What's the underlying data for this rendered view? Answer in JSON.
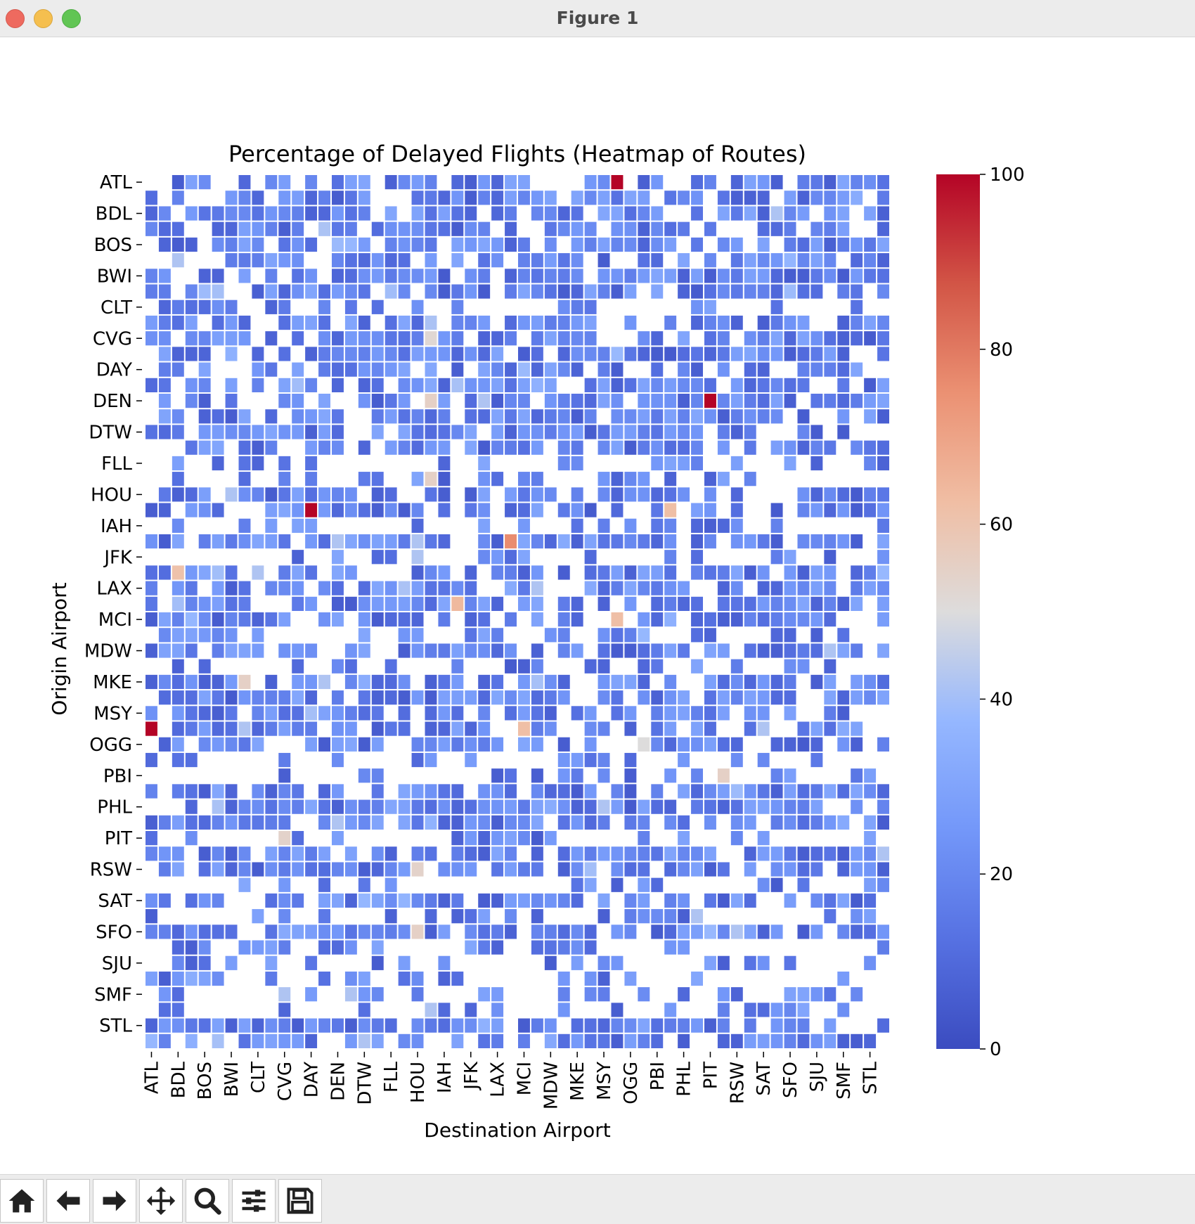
{
  "window": {
    "title": "Figure 1"
  },
  "toolbar": {
    "buttons": [
      {
        "name": "home-button",
        "icon": "home-icon"
      },
      {
        "name": "back-button",
        "icon": "arrow-left-icon"
      },
      {
        "name": "forward-button",
        "icon": "arrow-right-icon"
      },
      {
        "name": "pan-button",
        "icon": "move-icon"
      },
      {
        "name": "zoom-button",
        "icon": "magnifier-icon"
      },
      {
        "name": "configure-subplots-button",
        "icon": "sliders-icon"
      },
      {
        "name": "save-button",
        "icon": "floppy-disk-icon"
      }
    ]
  },
  "chart_data": {
    "type": "heatmap",
    "title": "Percentage of Delayed Flights (Heatmap of Routes)",
    "xlabel": "Destination Airport",
    "ylabel": "Origin Airport",
    "x_tick_labels": [
      "ATL",
      "BDL",
      "BOS",
      "BWI",
      "CLT",
      "CVG",
      "DAY",
      "DEN",
      "DTW",
      "FLL",
      "HOU",
      "IAH",
      "JFK",
      "LAX",
      "MCI",
      "MDW",
      "MKE",
      "MSY",
      "OGG",
      "PBI",
      "PHL",
      "PIT",
      "RSW",
      "SAT",
      "SFO",
      "SJU",
      "SMF",
      "STL"
    ],
    "y_tick_labels": [
      "ATL",
      "BDL",
      "BOS",
      "BWI",
      "CLT",
      "CVG",
      "DAY",
      "DEN",
      "DTW",
      "FLL",
      "HOU",
      "IAH",
      "JFK",
      "LAX",
      "MCI",
      "MDW",
      "MKE",
      "MSY",
      "OGG",
      "PBI",
      "PHL",
      "PIT",
      "RSW",
      "SAT",
      "SFO",
      "SJU",
      "SMF",
      "STL"
    ],
    "n_rows": 56,
    "n_cols": 56,
    "tick_every": 2,
    "colormap": "coolwarm",
    "vmin": 0,
    "vmax": 100,
    "colorbar_ticks": [
      0,
      20,
      40,
      60,
      80,
      100
    ],
    "background_cells_mean": 18,
    "hot_cells": [
      {
        "origin_row": 0,
        "dest_col": 35,
        "value": 100
      },
      {
        "origin_row": 14,
        "dest_col": 42,
        "value": 100
      },
      {
        "origin_row": 21,
        "dest_col": 12,
        "value": 100
      },
      {
        "origin_row": 35,
        "dest_col": 0,
        "value": 100
      },
      {
        "origin_row": 23,
        "dest_col": 27,
        "value": 76
      },
      {
        "origin_row": 27,
        "dest_col": 23,
        "value": 64
      },
      {
        "origin_row": 28,
        "dest_col": 35,
        "value": 62
      },
      {
        "origin_row": 35,
        "dest_col": 28,
        "value": 62
      },
      {
        "origin_row": 25,
        "dest_col": 2,
        "value": 61
      },
      {
        "origin_row": 21,
        "dest_col": 39,
        "value": 62
      },
      {
        "origin_row": 32,
        "dest_col": 7,
        "value": 55
      },
      {
        "origin_row": 19,
        "dest_col": 21,
        "value": 55
      },
      {
        "origin_row": 38,
        "dest_col": 43,
        "value": 55
      },
      {
        "origin_row": 14,
        "dest_col": 21,
        "value": 55
      },
      {
        "origin_row": 10,
        "dest_col": 21,
        "value": 52
      },
      {
        "origin_row": 42,
        "dest_col": 10,
        "value": 54
      },
      {
        "origin_row": 44,
        "dest_col": 20,
        "value": 54
      },
      {
        "origin_row": 48,
        "dest_col": 20,
        "value": 55
      },
      {
        "origin_row": 36,
        "dest_col": 37,
        "value": 50
      }
    ]
  }
}
